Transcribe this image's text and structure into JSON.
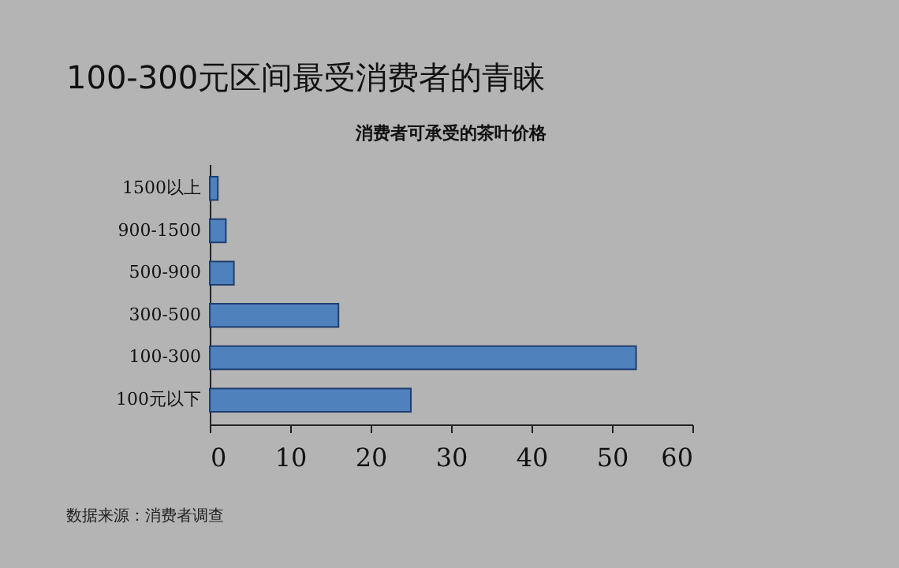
{
  "chart_data": {
    "type": "bar",
    "orientation": "horizontal",
    "title": "100-300元区间最受消费者的青睐",
    "subtitle": "消费者可承受的茶叶价格",
    "categories": [
      "1500以上",
      "900-1500",
      "500-900",
      "300-500",
      "100-300",
      "100元以下"
    ],
    "values": [
      1,
      2,
      3,
      16,
      53,
      25
    ],
    "color": "#4f81bd",
    "xlim": [
      0,
      60
    ],
    "xticks": [
      0,
      10,
      20,
      30,
      40,
      50,
      60
    ],
    "grid": false,
    "annotations": [
      "数据来源：消费者调查"
    ]
  }
}
